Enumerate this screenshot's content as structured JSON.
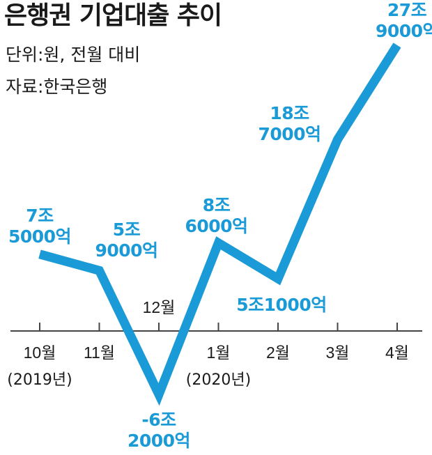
{
  "title": "은행권 기업대출 추이",
  "unit_note": "단위:원, 전월 대비",
  "source_note": "자료:한국은행",
  "colors": {
    "line": "#1a9ad6",
    "label": "#1a9ad6",
    "axis": "#444444",
    "text": "#1a1a1a"
  },
  "chart_data": {
    "type": "line",
    "title": "은행권 기업대출 추이",
    "categories": [
      "10월",
      "11월",
      "12월",
      "1월",
      "2월",
      "3월",
      "4월"
    ],
    "category_notes": [
      "(2019년)",
      "",
      "",
      "(2020년)",
      "",
      "",
      ""
    ],
    "unit": "억원",
    "values": [
      75000,
      59000,
      -62000,
      86000,
      51000,
      187000,
      279000
    ],
    "value_labels": [
      [
        "7조",
        "5000억"
      ],
      [
        "5조",
        "9000억"
      ],
      [
        "-6조",
        "2000억"
      ],
      [
        "8조",
        "6000억"
      ],
      [
        "5조1000억"
      ],
      [
        "18조",
        "7000억"
      ],
      [
        "27조",
        "9000억"
      ]
    ],
    "grid": false,
    "legend": "none"
  }
}
